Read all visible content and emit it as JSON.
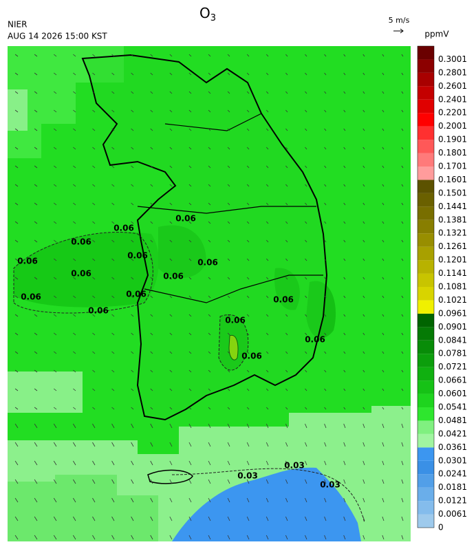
{
  "header": {
    "title": {
      "main": "O",
      "subscript": "3"
    },
    "source": "NIER",
    "time": "AUG 14 2026 15:00 KST",
    "wind_reference": "5 m/s",
    "unit": "ppmV"
  },
  "colorbar": {
    "labels": [
      0,
      0.0061,
      0.0121,
      0.0181,
      0.0241,
      0.0301,
      0.0361,
      0.0421,
      0.0481,
      0.0541,
      0.0601,
      0.0661,
      0.0721,
      0.0781,
      0.0841,
      0.0901,
      0.0961,
      0.1021,
      0.1081,
      0.1141,
      0.1201,
      0.1261,
      0.1321,
      0.1381,
      0.1441,
      0.1501,
      0.1601,
      0.1701,
      0.1801,
      0.1901,
      0.2001,
      0.2201,
      0.2401,
      0.2601,
      0.2801,
      0.3001
    ],
    "colors": [
      "#9ecaec",
      "#84bcec",
      "#6aaeea",
      "#529fe8",
      "#3a90e6",
      "#3c96f0",
      "#a0f5a0",
      "#80f080",
      "#2ee62e",
      "#1ed41e",
      "#16c216",
      "#10b010",
      "#0c9e0c",
      "#088c08",
      "#057a05",
      "#006400",
      "#f0f000",
      "#d8d400",
      "#c8c400",
      "#b8b200",
      "#a8a000",
      "#988e00",
      "#887e00",
      "#786e00",
      "#6a6000",
      "#5c5200",
      "#ff9c9c",
      "#ff7a7a",
      "#ff5858",
      "#ff3030",
      "#ff0000",
      "#e00000",
      "#c40000",
      "#a80000",
      "#8c0000",
      "#6a0000"
    ]
  },
  "contour_labels": [
    "0.06",
    "0.06",
    "0.06",
    "0.06",
    "0.06",
    "0.06",
    "0.06",
    "0.06",
    "0.06",
    "0.06",
    "0.06",
    "0.06",
    "0.06",
    "0.06",
    "0.06",
    "0.03",
    "0.03",
    "0.03"
  ]
}
